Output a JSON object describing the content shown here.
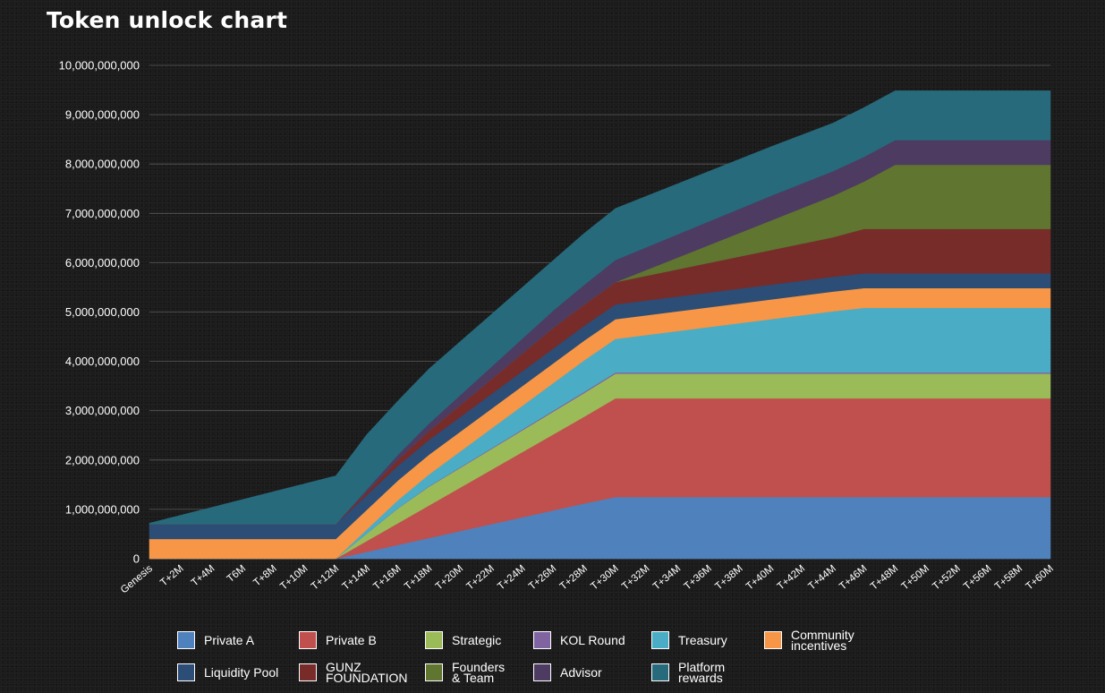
{
  "title": "Token unlock chart",
  "chart_data": {
    "type": "area",
    "stacked": true,
    "grid": true,
    "ylim": [
      0,
      10000000000
    ],
    "yticks": [
      "0",
      "1,000,000,000",
      "2,000,000,000",
      "3,000,000,000",
      "4,000,000,000",
      "5,000,000,000",
      "6,000,000,000",
      "7,000,000,000",
      "8,000,000,000",
      "9,000,000,000",
      "10,000,000,000"
    ],
    "x": [
      "Genesis",
      "T+2M",
      "T+4M",
      "T6M",
      "T+8M",
      "T+10M",
      "T+12M",
      "T+14M",
      "T+16M",
      "T+18M",
      "T+20M",
      "T+22M",
      "T+24M",
      "T+26M",
      "T+28M",
      "T+30M",
      "T+32M",
      "T+34M",
      "T+36M",
      "T+38M",
      "T+40M",
      "T+42M",
      "T+44M",
      "T+46M",
      "T+48M",
      "T+50M",
      "T+52M",
      "T+56M",
      "T+58M",
      "T+60M"
    ],
    "legend_position": "bottom",
    "series": [
      {
        "name": "Private A",
        "color": "#4f81bd",
        "values": [
          0,
          0,
          0,
          0,
          0,
          0,
          0,
          140000000,
          280000000,
          420000000,
          560000000,
          700000000,
          840000000,
          980000000,
          1120000000,
          1250000000,
          1250000000,
          1250000000,
          1250000000,
          1250000000,
          1250000000,
          1250000000,
          1250000000,
          1250000000,
          1250000000,
          1250000000,
          1250000000,
          1250000000,
          1250000000,
          1250000000
        ]
      },
      {
        "name": "Private B",
        "color": "#c0504d",
        "values": [
          0,
          0,
          0,
          0,
          0,
          0,
          0,
          220000000,
          440000000,
          660000000,
          880000000,
          1100000000,
          1320000000,
          1540000000,
          1760000000,
          2000000000,
          2000000000,
          2000000000,
          2000000000,
          2000000000,
          2000000000,
          2000000000,
          2000000000,
          2000000000,
          2000000000,
          2000000000,
          2000000000,
          2000000000,
          2000000000,
          2000000000
        ]
      },
      {
        "name": "Strategic",
        "color": "#9bbb59",
        "values": [
          0,
          0,
          0,
          0,
          0,
          0,
          0,
          150000000,
          300000000,
          380000000,
          400000000,
          420000000,
          440000000,
          460000000,
          480000000,
          500000000,
          500000000,
          500000000,
          500000000,
          500000000,
          500000000,
          500000000,
          500000000,
          500000000,
          500000000,
          500000000,
          500000000,
          500000000,
          500000000,
          500000000
        ]
      },
      {
        "name": "KOL Round",
        "color": "#8064a2",
        "values": [
          0,
          0,
          0,
          0,
          0,
          0,
          0,
          3000000,
          6000000,
          9000000,
          12000000,
          15000000,
          18000000,
          21000000,
          24000000,
          25000000,
          25000000,
          25000000,
          25000000,
          25000000,
          25000000,
          25000000,
          25000000,
          25000000,
          25000000,
          25000000,
          25000000,
          25000000,
          25000000,
          25000000
        ]
      },
      {
        "name": "Treasury",
        "color": "#4bacc6",
        "values": [
          0,
          0,
          0,
          0,
          0,
          0,
          0,
          80000000,
          160000000,
          240000000,
          320000000,
          400000000,
          480000000,
          560000000,
          640000000,
          680000000,
          760000000,
          840000000,
          920000000,
          1000000000,
          1080000000,
          1160000000,
          1240000000,
          1310000000,
          1310000000,
          1310000000,
          1310000000,
          1310000000,
          1310000000,
          1310000000
        ]
      },
      {
        "name": "Community incentives",
        "color": "#f79646",
        "values": [
          400000000,
          400000000,
          400000000,
          400000000,
          400000000,
          400000000,
          400000000,
          400000000,
          400000000,
          400000000,
          400000000,
          400000000,
          400000000,
          400000000,
          400000000,
          400000000,
          400000000,
          400000000,
          400000000,
          400000000,
          400000000,
          400000000,
          400000000,
          400000000,
          400000000,
          400000000,
          400000000,
          400000000,
          400000000,
          400000000
        ]
      },
      {
        "name": "Liquidity Pool",
        "color": "#2c4d75",
        "values": [
          300000000,
          300000000,
          300000000,
          300000000,
          300000000,
          300000000,
          300000000,
          300000000,
          300000000,
          300000000,
          300000000,
          300000000,
          300000000,
          300000000,
          300000000,
          300000000,
          300000000,
          300000000,
          300000000,
          300000000,
          300000000,
          300000000,
          300000000,
          300000000,
          300000000,
          300000000,
          300000000,
          300000000,
          300000000,
          300000000
        ]
      },
      {
        "name": "GUNZ FOUNDATION",
        "color": "#772c2a",
        "values": [
          0,
          0,
          0,
          0,
          0,
          0,
          0,
          60000000,
          120000000,
          180000000,
          240000000,
          300000000,
          360000000,
          420000000,
          430000000,
          450000000,
          500000000,
          550000000,
          600000000,
          650000000,
          700000000,
          750000000,
          800000000,
          900000000,
          900000000,
          900000000,
          900000000,
          900000000,
          900000000,
          900000000
        ]
      },
      {
        "name": "Founders & Team",
        "color": "#5f7530",
        "values": [
          0,
          0,
          0,
          0,
          0,
          0,
          0,
          0,
          0,
          0,
          0,
          0,
          0,
          0,
          0,
          0,
          120000000,
          240000000,
          360000000,
          480000000,
          600000000,
          720000000,
          840000000,
          960000000,
          1300000000,
          1300000000,
          1300000000,
          1300000000,
          1300000000,
          1300000000
        ]
      },
      {
        "name": "Advisor",
        "color": "#4d3b62",
        "values": [
          0,
          0,
          0,
          0,
          0,
          0,
          0,
          50000000,
          100000000,
          150000000,
          200000000,
          250000000,
          300000000,
          350000000,
          400000000,
          450000000,
          460000000,
          470000000,
          480000000,
          490000000,
          500000000,
          500000000,
          500000000,
          500000000,
          500000000,
          500000000,
          500000000,
          500000000,
          500000000,
          500000000
        ]
      },
      {
        "name": "Platform rewards",
        "color": "#276a7c",
        "values": [
          20000000,
          180000000,
          340000000,
          500000000,
          660000000,
          820000000,
          980000000,
          1117000000,
          1094000000,
          1111000000,
          1088000000,
          1065000000,
          1042000000,
          1019000000,
          1046000000,
          1045000000,
          1035000000,
          1025000000,
          1015000000,
          1005000000,
          995000000,
          985000000,
          975000000,
          1000000000,
          1000000000,
          1000000000,
          1000000000,
          1000000000,
          1000000000,
          1000000000
        ]
      }
    ]
  },
  "legend": [
    {
      "label": "Private A",
      "color": "#4f81bd"
    },
    {
      "label": "Private B",
      "color": "#c0504d"
    },
    {
      "label": "Strategic",
      "color": "#9bbb59"
    },
    {
      "label": "KOL Round",
      "color": "#8064a2"
    },
    {
      "label": "Treasury",
      "color": "#4bacc6"
    },
    {
      "label": "Community\nincentives",
      "color": "#f79646"
    },
    {
      "label": "Liquidity Pool",
      "color": "#2c4d75"
    },
    {
      "label": "GUNZ\nFOUNDATION",
      "color": "#772c2a"
    },
    {
      "label": "Founders\n& Team",
      "color": "#5f7530"
    },
    {
      "label": "Advisor",
      "color": "#4d3b62"
    },
    {
      "label": "Platform\nrewards",
      "color": "#276a7c"
    }
  ]
}
